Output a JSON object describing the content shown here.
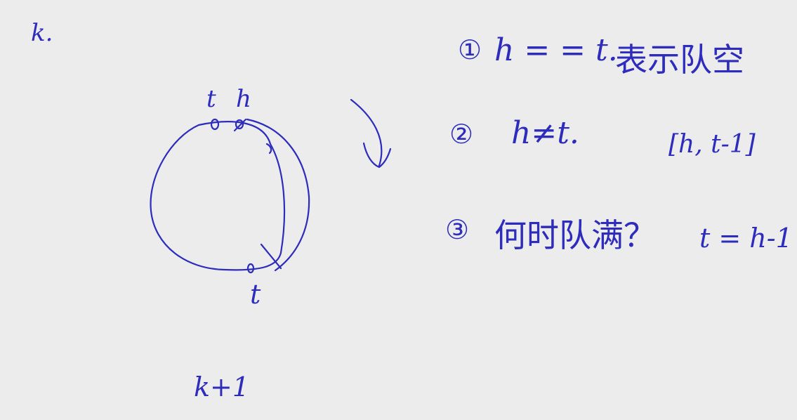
{
  "ink_color": "#2d2cbc",
  "background_color": "#ececec",
  "notes": {
    "corner_k": "k.",
    "label_t_top": "t",
    "label_h_top": "h",
    "label_t_bottom": "t",
    "bottom_expr": "k+1",
    "item1_number": "①",
    "item1_formula": "h = = t.",
    "item1_meaning": "表示队空",
    "item2_number": "②",
    "item2_formula": "h≠t.",
    "item2_range": "[h,  t-1]",
    "item3_number": "③",
    "item3_question": "何时队满？",
    "item3_answer": "t = h-1"
  }
}
